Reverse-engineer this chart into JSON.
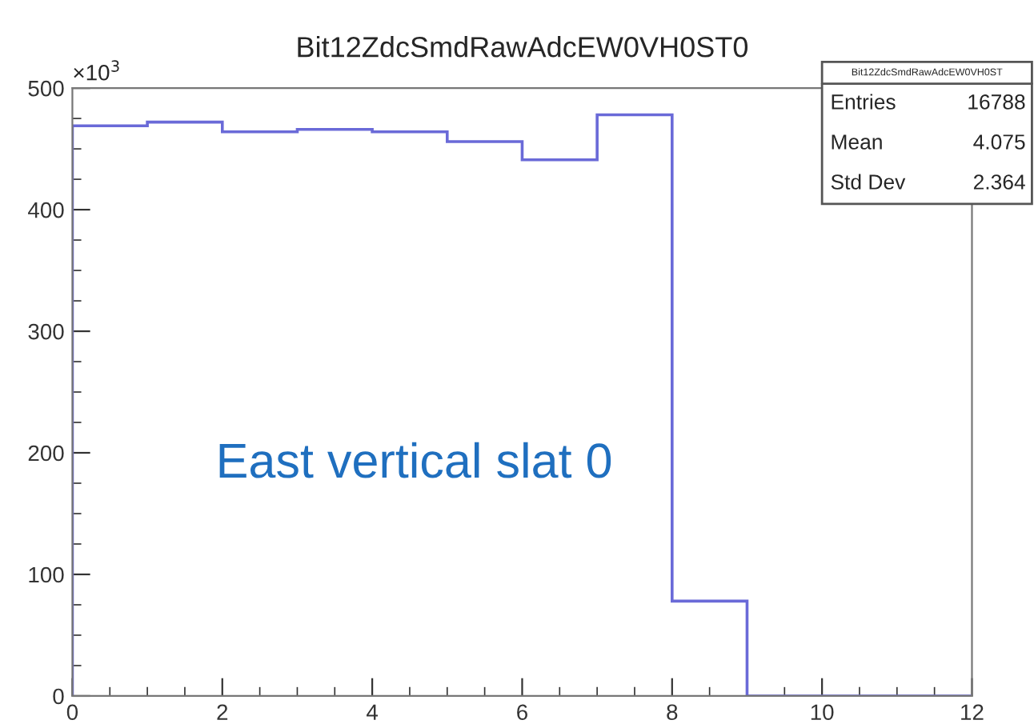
{
  "chart_data": {
    "type": "histogram",
    "title": "Bit12ZdcSmdRawAdcEW0VH0ST0",
    "bins": [
      0,
      1,
      2,
      3,
      4,
      5,
      6,
      7,
      8,
      9,
      10,
      11,
      12
    ],
    "values": [
      469,
      472,
      464,
      466,
      464,
      456,
      441,
      478,
      78,
      0,
      0,
      0
    ],
    "color": "#6a6ad8",
    "xlim": [
      0,
      12
    ],
    "xticks": [
      0,
      2,
      4,
      6,
      8,
      10,
      12
    ],
    "ylim": [
      0,
      500
    ],
    "yticks": [
      0,
      100,
      200,
      300,
      400,
      500
    ],
    "ylabel": "×10$^{3}$",
    "annotations": [
      "Bit12ZdcSmdRawAdcEW0VH0ST",
      "Entries 16788",
      "Mean 4.075",
      "Std Dev 2.364",
      "East vertical slat 0"
    ],
    "grid": false
  }
}
